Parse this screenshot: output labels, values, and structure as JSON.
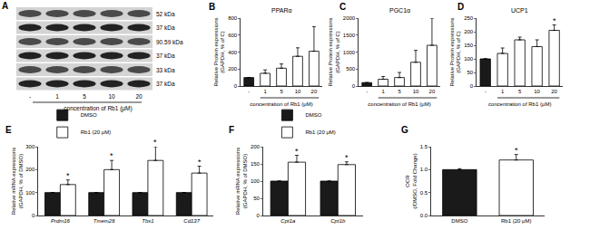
{
  "blot": {
    "panel": "A",
    "rows": [
      {
        "kda": "52 kDa"
      },
      {
        "kda": "37 kDa"
      },
      {
        "kda": "90.59 kDa"
      },
      {
        "kda": "37 kDa"
      },
      {
        "kda": "33 kDa"
      },
      {
        "kda": "37 kDa"
      }
    ],
    "lanes": [
      "-",
      "1",
      "5",
      "10",
      "20"
    ],
    "xlabel": "concentration of Rb1 (μM)"
  },
  "chart_data": [
    {
      "panel": "B",
      "type": "bar",
      "title": "PPARα",
      "categories": [
        "-",
        "1",
        "5",
        "10",
        "20"
      ],
      "values": [
        100,
        150,
        210,
        350,
        410
      ],
      "errors": [
        0,
        40,
        50,
        100,
        290
      ],
      "colors": [
        "#1a1a1a",
        "#ffffff",
        "#ffffff",
        "#ffffff",
        "#ffffff"
      ],
      "xlabel": "concentration of Rb1 (μM)",
      "ylabel": "Relative Protein expressions (GAPDH, % of C)",
      "ylim": [
        0,
        800
      ],
      "yticks": [
        0,
        200,
        400,
        600,
        800
      ]
    },
    {
      "panel": "C",
      "type": "bar",
      "title": "PGC1α",
      "categories": [
        "-",
        "1",
        "5",
        "10",
        "20"
      ],
      "values": [
        100,
        200,
        250,
        700,
        1200
      ],
      "errors": [
        0,
        80,
        150,
        350,
        800
      ],
      "colors": [
        "#1a1a1a",
        "#ffffff",
        "#ffffff",
        "#ffffff",
        "#ffffff"
      ],
      "xlabel": "concentration of Rb1 (μM)",
      "ylabel": "Relative Protein expressions (GAPDH, % of C)",
      "ylim": [
        0,
        2000
      ],
      "yticks": [
        0,
        500,
        1000,
        1500,
        2000
      ]
    },
    {
      "panel": "D",
      "type": "bar",
      "title": "UCP1",
      "categories": [
        "-",
        "1",
        "5",
        "10",
        "20"
      ],
      "values": [
        100,
        120,
        170,
        145,
        205
      ],
      "errors": [
        0,
        20,
        10,
        25,
        20
      ],
      "stars": [
        null,
        null,
        null,
        null,
        "*"
      ],
      "colors": [
        "#1a1a1a",
        "#ffffff",
        "#ffffff",
        "#ffffff",
        "#ffffff"
      ],
      "xlabel": "concentration of Rb1 (μM)",
      "ylabel": "Relative Protein expressions (GAPDH, % of C)",
      "ylim": [
        0,
        250
      ],
      "yticks": [
        0,
        50,
        100,
        150,
        200,
        250
      ]
    },
    {
      "panel": "E",
      "type": "bar",
      "categories": [
        "Prdm16",
        "Tmem26",
        "Tbx1",
        "Cd137"
      ],
      "ylabel": "Relative mRNA expressions (GAPDH, % of DMSO)",
      "ylim": [
        0,
        300
      ],
      "yticks": [
        0,
        100,
        200,
        300
      ],
      "legend": "top left",
      "series": [
        {
          "name": "DMSO",
          "color": "#1a1a1a",
          "values": [
            100,
            100,
            100,
            100
          ],
          "errors": [
            0,
            0,
            0,
            0
          ]
        },
        {
          "name": "Rb1 (20 μM)",
          "color": "#ffffff",
          "values": [
            135,
            200,
            240,
            185
          ],
          "errors": [
            20,
            40,
            60,
            30
          ],
          "stars": [
            "*",
            "*",
            "*",
            "*"
          ]
        }
      ]
    },
    {
      "panel": "F",
      "type": "bar",
      "categories": [
        "Cpt1a",
        "Cpt1b"
      ],
      "ylabel": "Relative mRNA expressions (GAPDH, % of DMSO)",
      "ylim": [
        0,
        200
      ],
      "yticks": [
        0,
        50,
        100,
        150,
        200
      ],
      "legend": "top left",
      "series": [
        {
          "name": "DMSO",
          "color": "#1a1a1a",
          "values": [
            100,
            100
          ],
          "errors": [
            0,
            0
          ]
        },
        {
          "name": "Rb1 (20 μM)",
          "color": "#ffffff",
          "values": [
            155,
            148
          ],
          "errors": [
            20,
            8
          ],
          "stars": [
            "*",
            "*"
          ]
        }
      ]
    },
    {
      "panel": "G",
      "type": "bar",
      "categories": [
        "DMSO",
        "Rb1 (20 μM)"
      ],
      "values": [
        1.0,
        1.21
      ],
      "errors": [
        0.02,
        0.12
      ],
      "stars": [
        null,
        "*"
      ],
      "colors": [
        "#1a1a1a",
        "#ffffff"
      ],
      "ylabel": "OCR (/DMSO, Fold Change)",
      "ylim": [
        0,
        1.5
      ],
      "yticks": [
        {
          "value": 0,
          "label": "0.0"
        },
        {
          "value": 0.5,
          "label": "0.5"
        },
        {
          "value": 1,
          "label": "1.0"
        },
        {
          "value": 1.5,
          "label": "1.5"
        }
      ]
    }
  ]
}
